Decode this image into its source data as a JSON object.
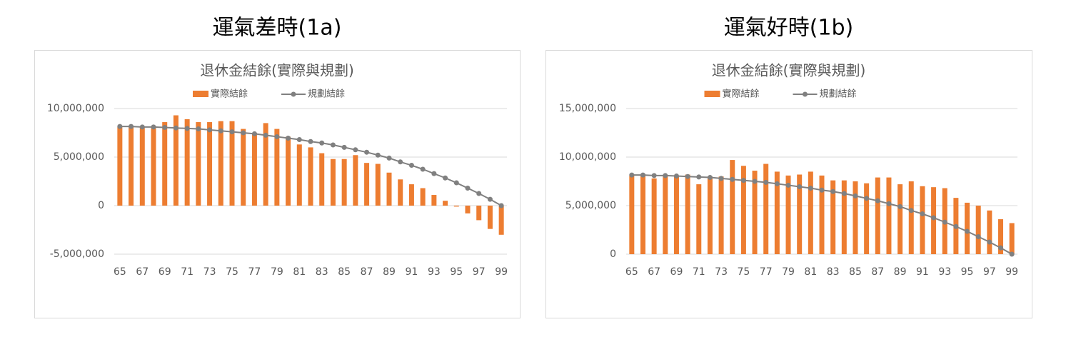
{
  "chart_data": [
    {
      "type": "bar_line",
      "heading": "運氣差時(1a)",
      "title": "退休金結餘(實際與規劃)",
      "categories": [
        "65",
        null,
        "67",
        null,
        "69",
        null,
        "71",
        null,
        "73",
        null,
        "75",
        null,
        "77",
        null,
        "79",
        null,
        "81",
        null,
        "83",
        null,
        "85",
        null,
        "87",
        null,
        "89",
        null,
        "91",
        null,
        "93",
        null,
        "95",
        null,
        "97",
        null,
        "99"
      ],
      "series": [
        {
          "name": "實際結餘",
          "kind": "bar",
          "color": "#ed7d31",
          "values": [
            8100000,
            8200000,
            8100000,
            8000000,
            8600000,
            9300000,
            8900000,
            8600000,
            8600000,
            8700000,
            8700000,
            7900000,
            7500000,
            8500000,
            7900000,
            7100000,
            6300000,
            6000000,
            5400000,
            4800000,
            4800000,
            5200000,
            4400000,
            4300000,
            3400000,
            2700000,
            2200000,
            1800000,
            1100000,
            500000,
            -100000,
            -800000,
            -1500000,
            -2400000,
            -3000000
          ]
        },
        {
          "name": "規劃結餘",
          "kind": "line",
          "color": "#808080",
          "values": [
            8150000,
            8150000,
            8100000,
            8100000,
            8050000,
            8000000,
            7950000,
            7900000,
            7800000,
            7700000,
            7600000,
            7500000,
            7400000,
            7250000,
            7100000,
            6950000,
            6800000,
            6600000,
            6450000,
            6250000,
            6000000,
            5750000,
            5500000,
            5200000,
            4900000,
            4500000,
            4150000,
            3750000,
            3300000,
            2850000,
            2350000,
            1800000,
            1250000,
            650000,
            0
          ]
        }
      ],
      "ylim": [
        -5000000,
        10000000
      ],
      "yticks": [
        {
          "value": -5000000,
          "label": "-5,000,000"
        },
        0,
        {
          "value": 5000000,
          "label": "5,000,000"
        },
        {
          "value": 10000000,
          "label": "10,000,000"
        }
      ],
      "negative_label_color": "#e00000",
      "grid": true
    },
    {
      "type": "bar_line",
      "heading": "運氣好時(1b)",
      "title": "退休金結餘(實際與規劃)",
      "categories": [
        "65",
        null,
        "67",
        null,
        "69",
        null,
        "71",
        null,
        "73",
        null,
        "75",
        null,
        "77",
        null,
        "79",
        null,
        "81",
        null,
        "83",
        null,
        "85",
        null,
        "87",
        null,
        "89",
        null,
        "91",
        null,
        "93",
        null,
        "95",
        null,
        "97",
        null,
        "99"
      ],
      "series": [
        {
          "name": "實際結餘",
          "kind": "bar",
          "color": "#ed7d31",
          "values": [
            8100000,
            8200000,
            7800000,
            8100000,
            8000000,
            8200000,
            7200000,
            8000000,
            8000000,
            9700000,
            9100000,
            8600000,
            9300000,
            8500000,
            8100000,
            8200000,
            8500000,
            8100000,
            7600000,
            7600000,
            7500000,
            7300000,
            7900000,
            7900000,
            7200000,
            7500000,
            7000000,
            6900000,
            6800000,
            5800000,
            5300000,
            5000000,
            4500000,
            3600000,
            3200000
          ]
        },
        {
          "name": "規劃結餘",
          "kind": "line",
          "color": "#808080",
          "values": [
            8150000,
            8150000,
            8100000,
            8100000,
            8050000,
            8000000,
            7950000,
            7900000,
            7800000,
            7700000,
            7600000,
            7500000,
            7400000,
            7250000,
            7100000,
            6950000,
            6800000,
            6600000,
            6450000,
            6250000,
            6000000,
            5750000,
            5500000,
            5200000,
            4900000,
            4500000,
            4150000,
            3750000,
            3300000,
            2850000,
            2350000,
            1800000,
            1250000,
            650000,
            0
          ]
        }
      ],
      "ylim": [
        0,
        15000000
      ],
      "yticks": [
        0,
        {
          "value": 5000000,
          "label": "5,000,000"
        },
        {
          "value": 10000000,
          "label": "10,000,000"
        },
        {
          "value": 15000000,
          "label": "15,000,000"
        }
      ],
      "grid": true
    }
  ]
}
